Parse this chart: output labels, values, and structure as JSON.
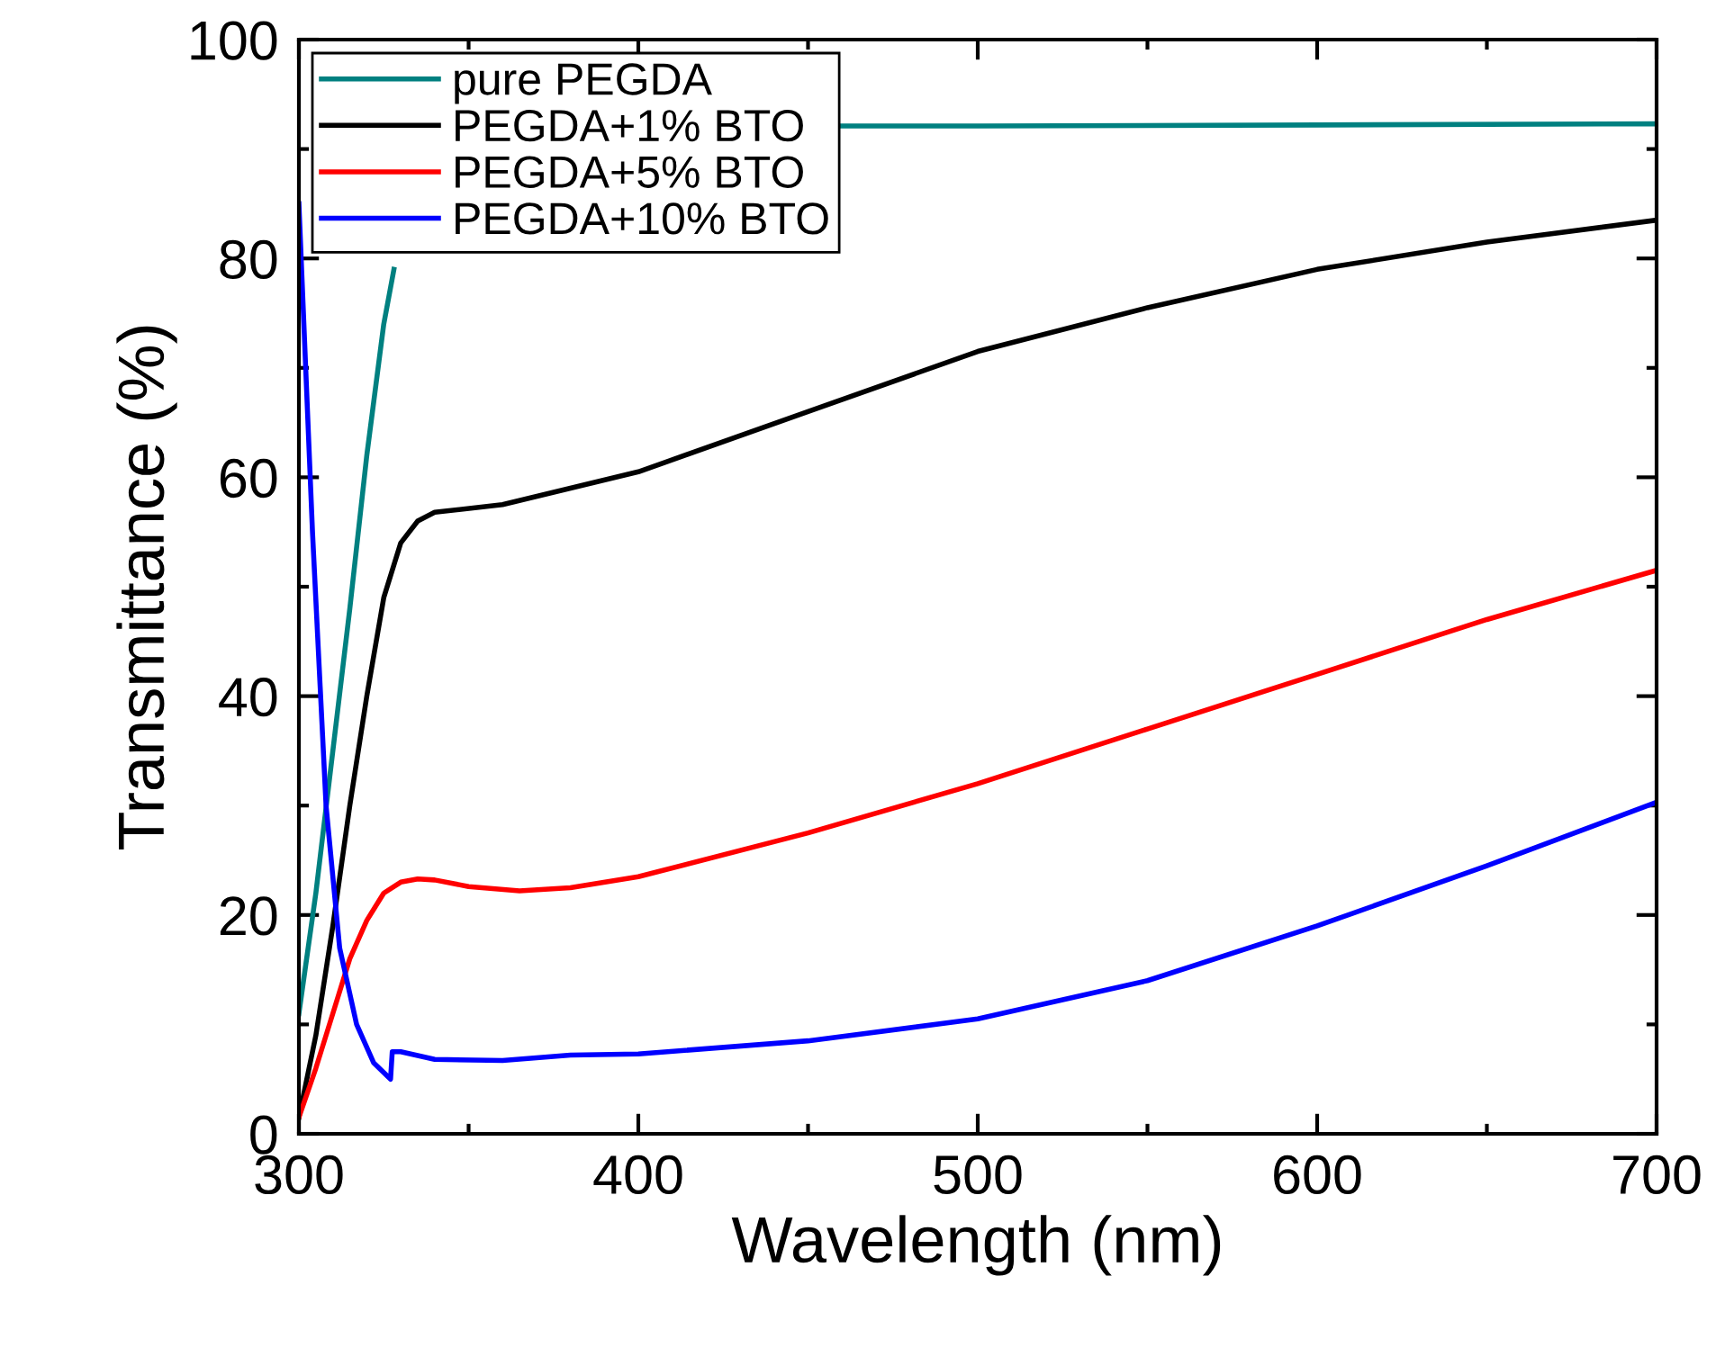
{
  "chart_data": {
    "type": "line",
    "xlabel": "Wavelength (nm)",
    "ylabel": "Transmittance (%)",
    "xlim": [
      300,
      700
    ],
    "ylim": [
      0,
      100
    ],
    "xticks": [
      300,
      400,
      500,
      600,
      700
    ],
    "yticks": [
      0,
      20,
      40,
      60,
      80,
      100
    ],
    "grid": false,
    "legend": "top left",
    "marker": "none",
    "line_style": "solid",
    "series": [
      {
        "name": "pure PEGDA",
        "color": "#008080",
        "x": [
          300,
          305,
          310,
          315,
          320,
          325,
          328,
          335,
          460,
          500,
          600,
          700
        ],
        "values": [
          11,
          22,
          35,
          48,
          62,
          74,
          79,
          null,
          92.1,
          92.1,
          92.2,
          92.3
        ]
      },
      {
        "name": "PEGDA+1% BTO",
        "color": "#000000",
        "x": [
          300,
          305,
          310,
          315,
          320,
          325,
          330,
          335,
          340,
          360,
          380,
          400,
          450,
          500,
          550,
          600,
          650,
          700
        ],
        "values": [
          1.5,
          9,
          19,
          30,
          40,
          49,
          54,
          56,
          56.8,
          57.5,
          59,
          60.5,
          66,
          71.5,
          75.5,
          79,
          81.5,
          83.5
        ]
      },
      {
        "name": "PEGDA+5% BTO",
        "color": "#ff0000",
        "x": [
          300,
          305,
          310,
          315,
          320,
          325,
          330,
          335,
          340,
          350,
          365,
          380,
          400,
          450,
          500,
          550,
          600,
          650,
          700
        ],
        "values": [
          1.5,
          6,
          11,
          16,
          19.5,
          22,
          23,
          23.3,
          23.2,
          22.6,
          22.2,
          22.5,
          23.5,
          27.5,
          32,
          37,
          42,
          47,
          51.5
        ]
      },
      {
        "name": "PEGDA+10% BTO",
        "color": "#0000ff",
        "x": [
          300,
          302,
          304,
          308,
          312,
          317,
          322,
          327,
          327.5,
          330,
          340,
          360,
          380,
          400,
          450,
          500,
          550,
          600,
          650,
          700
        ],
        "values": [
          85,
          70,
          55,
          30,
          17,
          10,
          6.5,
          5,
          7.5,
          7.5,
          6.8,
          6.7,
          7.2,
          7.3,
          8.5,
          10.5,
          14,
          19,
          24.5,
          30.3
        ]
      }
    ]
  }
}
